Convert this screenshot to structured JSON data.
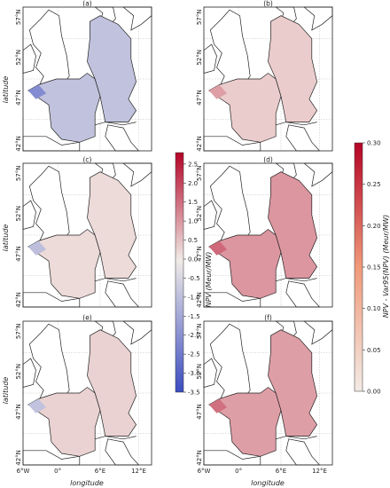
{
  "panels": [
    {
      "id": "a",
      "title": "(a)",
      "colormap": "diverging",
      "level": -0.9
    },
    {
      "id": "b",
      "title": "(b)",
      "colormap": "sequential",
      "level": 0.04
    },
    {
      "id": "c",
      "title": "(c)",
      "colormap": "diverging",
      "level": 0.2
    },
    {
      "id": "d",
      "title": "(d)",
      "colormap": "sequential",
      "level": 0.11
    },
    {
      "id": "e",
      "title": "(e)",
      "colormap": "diverging",
      "level": 0.3
    },
    {
      "id": "f",
      "title": "(f)",
      "colormap": "sequential",
      "level": 0.1
    }
  ],
  "lat_ticks": [
    "57°N",
    "52°N",
    "47°N",
    "42°N"
  ],
  "lon_ticks": [
    "6°W",
    "0°",
    "6°E",
    "12°E"
  ],
  "axis": {
    "ylabel": "latitude",
    "xlabel": "longitude"
  },
  "colorbar_left": {
    "label": "NPV (Meur/MW)",
    "ticks": [
      "2.5",
      "2.0",
      "1.5",
      "1.0",
      "0.5",
      "0.0",
      "-0.5",
      "-1.0",
      "-1.5",
      "-2.0",
      "-2.5",
      "-3.0",
      "-3.5"
    ],
    "range": [
      -3.5,
      2.8
    ],
    "colors": {
      "low": "#3b4cc0",
      "mid": "#f0ebe7",
      "high": "#b40426"
    }
  },
  "colorbar_right": {
    "label": "NPV - Var95(NPV) (Meur/MW)",
    "ticks": [
      "0.30",
      "0.25",
      "0.20",
      "0.15",
      "0.10",
      "0.05",
      "0.00"
    ],
    "range": [
      0,
      0.3
    ],
    "colors": {
      "low": "#f3ebe6",
      "high": "#b40426"
    }
  }
}
